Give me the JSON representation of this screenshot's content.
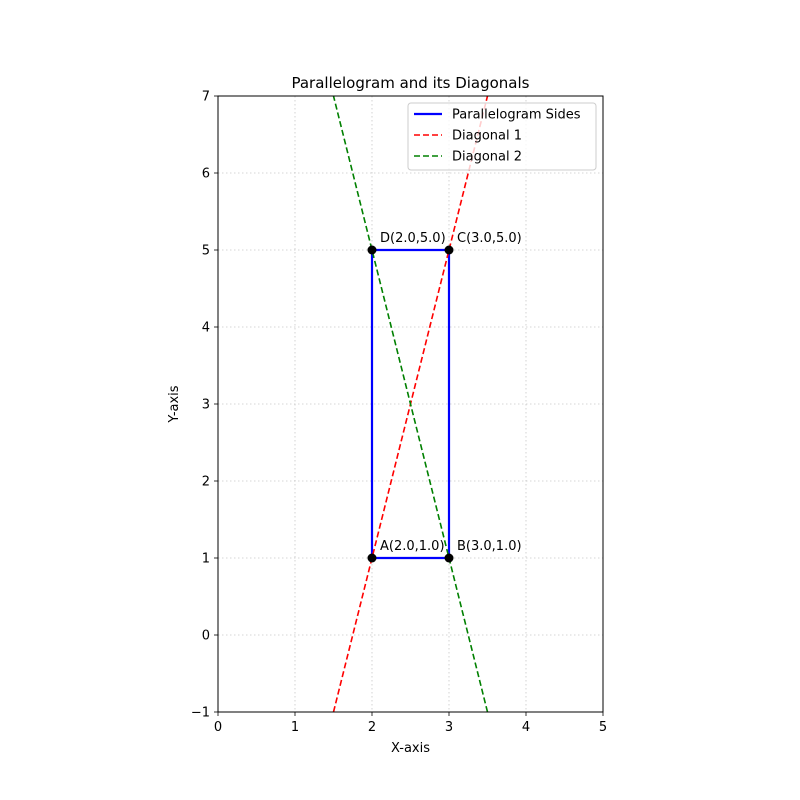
{
  "chart_data": {
    "type": "line",
    "title": "Parallelogram and its Diagonals",
    "xlabel": "X-axis",
    "ylabel": "Y-axis",
    "xlim": [
      0,
      5
    ],
    "ylim": [
      -1,
      7
    ],
    "x_ticks": [
      0,
      1,
      2,
      3,
      4,
      5
    ],
    "y_ticks": [
      -1,
      0,
      1,
      2,
      3,
      4,
      5,
      6,
      7
    ],
    "x_tick_labels": [
      "0",
      "1",
      "2",
      "3",
      "4",
      "5"
    ],
    "y_tick_labels": [
      "−1",
      "0",
      "1",
      "2",
      "3",
      "4",
      "5",
      "6",
      "7"
    ],
    "grid": true,
    "legend_position": "top-right",
    "series": [
      {
        "name": "Parallelogram Sides",
        "style": "solid",
        "color": "#0000ff",
        "points": [
          [
            2,
            1
          ],
          [
            3,
            1
          ],
          [
            3,
            5
          ],
          [
            2,
            5
          ],
          [
            2,
            1
          ]
        ]
      },
      {
        "name": "Diagonal 1",
        "style": "dashed",
        "color": "#ff0000",
        "points": [
          [
            1.5,
            -1
          ],
          [
            3.5,
            7
          ]
        ]
      },
      {
        "name": "Diagonal 2",
        "style": "dashed",
        "color": "#008000",
        "points": [
          [
            3.5,
            -1
          ],
          [
            1.5,
            7
          ]
        ]
      }
    ],
    "vertices": [
      {
        "x": 2,
        "y": 1,
        "label": "A(2.0,1.0)"
      },
      {
        "x": 3,
        "y": 1,
        "label": "B(3.0,1.0)"
      },
      {
        "x": 3,
        "y": 5,
        "label": "C(3.0,5.0)"
      },
      {
        "x": 2,
        "y": 5,
        "label": "D(2.0,5.0)"
      }
    ]
  }
}
